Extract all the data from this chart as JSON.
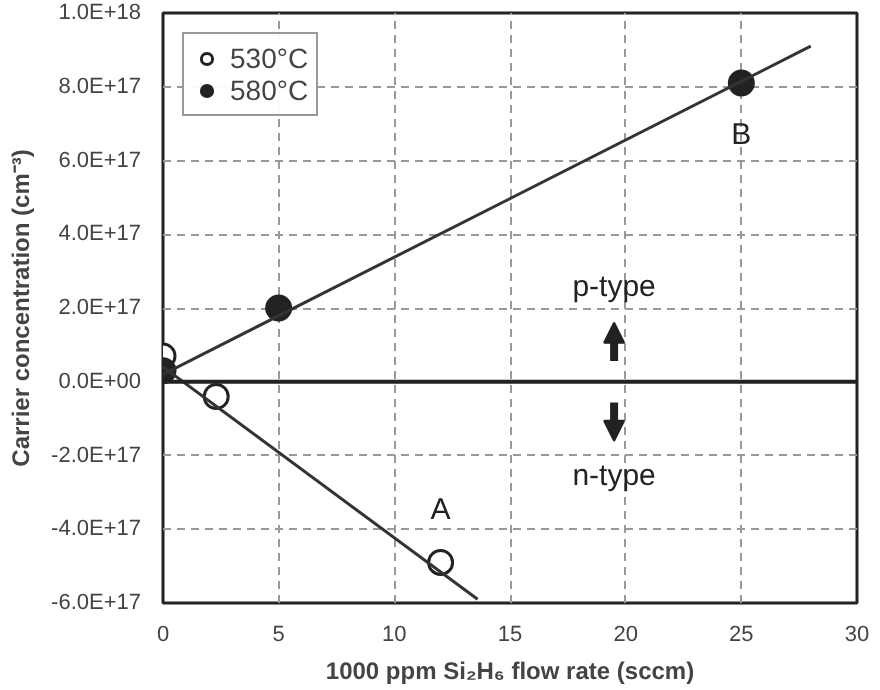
{
  "chart_data": {
    "type": "scatter",
    "xlabel": "1000 ppm Si₂H₆ flow rate (sccm)",
    "ylabel": "Carrier concentration (cm⁻³)",
    "xlim": [
      0,
      30
    ],
    "xticks": [
      0,
      5,
      10,
      15,
      20,
      25,
      30
    ],
    "ylim": [
      -6e+17,
      1e+18
    ],
    "yticks": [
      {
        "value": -6e+17,
        "label": "-6.0E+17"
      },
      {
        "value": -4e+17,
        "label": "-4.0E+17"
      },
      {
        "value": -2e+17,
        "label": "-2.0E+17"
      },
      {
        "value": 0,
        "label": "0.0E+00"
      },
      {
        "value": 2e+17,
        "label": "2.0E+17"
      },
      {
        "value": 4e+17,
        "label": "4.0E+17"
      },
      {
        "value": 6e+17,
        "label": "6.0E+17"
      },
      {
        "value": 8e+17,
        "label": "8.0E+17"
      },
      {
        "value": 1e+18,
        "label": "1.0E+18"
      }
    ],
    "grid": true,
    "legend": "top left",
    "series": [
      {
        "name": "530°C",
        "color": "#ffffff",
        "marker": "circle",
        "x": [
          0,
          2.3,
          12
        ],
        "values": [
          7e+16,
          -4e+16,
          -4.9e+17
        ]
      },
      {
        "name": "580°C",
        "color": "#222222",
        "marker": "circle",
        "x": [
          0,
          5,
          25
        ],
        "values": [
          3e+16,
          2e+17,
          8.1e+17
        ]
      },
      {
        "type": "line",
        "marker": "none",
        "color": "#333333",
        "x": [
          0,
          13.6
        ],
        "values": [
          4e+16,
          -5.9e+17
        ]
      },
      {
        "type": "line",
        "marker": "none",
        "color": "#333333",
        "x": [
          0,
          28
        ],
        "values": [
          2e+16,
          9.1e+17
        ]
      }
    ],
    "ref_lines": [
      {
        "axis": "y",
        "value": 0,
        "color": "#222222"
      }
    ],
    "annotations": [
      {
        "text": "A",
        "x": 12,
        "y": -4.9e+17
      },
      {
        "text": "B",
        "x": 25,
        "y": 8.1e+17
      },
      "p-type",
      "n-type"
    ]
  }
}
